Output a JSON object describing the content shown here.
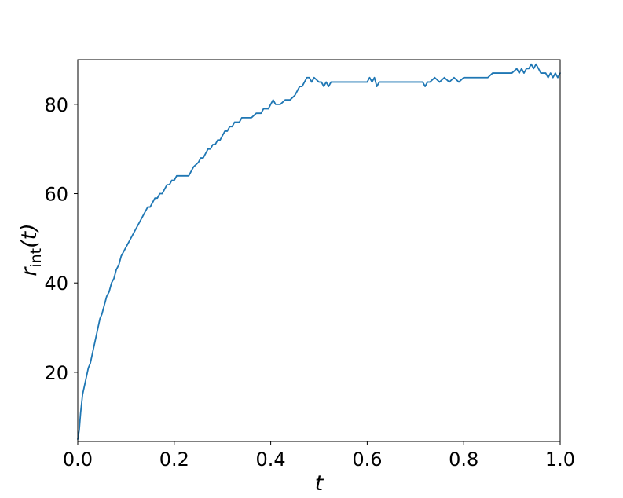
{
  "chart_data": {
    "type": "line",
    "title": "",
    "xlabel": "t",
    "ylabel": {
      "var": "r",
      "sub": "int",
      "arg": "(t)"
    },
    "xlim": [
      0.0,
      1.0
    ],
    "ylim": [
      4.5,
      90
    ],
    "grid": false,
    "legend": null,
    "x_ticks": [
      "0.0",
      "0.2",
      "0.4",
      "0.6",
      "0.8",
      "1.0"
    ],
    "y_ticks": [
      "20",
      "40",
      "60",
      "80"
    ],
    "colors": {
      "line": "#1f77b4",
      "axes": "#000000"
    },
    "series": [
      {
        "x": [
          0.0,
          0.003,
          0.006,
          0.01,
          0.014,
          0.018,
          0.022,
          0.026,
          0.03,
          0.034,
          0.038,
          0.042,
          0.046,
          0.05,
          0.055,
          0.06,
          0.065,
          0.07,
          0.075,
          0.08,
          0.085,
          0.09,
          0.095,
          0.1,
          0.105,
          0.11,
          0.115,
          0.12,
          0.125,
          0.13,
          0.135,
          0.14,
          0.145,
          0.15,
          0.155,
          0.16,
          0.165,
          0.17,
          0.175,
          0.18,
          0.185,
          0.19,
          0.195,
          0.2,
          0.205,
          0.21,
          0.215,
          0.22,
          0.23,
          0.24,
          0.25,
          0.255,
          0.26,
          0.265,
          0.27,
          0.275,
          0.28,
          0.285,
          0.29,
          0.295,
          0.3,
          0.305,
          0.31,
          0.315,
          0.32,
          0.325,
          0.33,
          0.335,
          0.34,
          0.345,
          0.35,
          0.36,
          0.37,
          0.375,
          0.38,
          0.385,
          0.39,
          0.395,
          0.4,
          0.405,
          0.41,
          0.415,
          0.42,
          0.43,
          0.44,
          0.45,
          0.455,
          0.46,
          0.465,
          0.47,
          0.475,
          0.48,
          0.485,
          0.49,
          0.5,
          0.505,
          0.51,
          0.515,
          0.52,
          0.525,
          0.53,
          0.54,
          0.55,
          0.56,
          0.57,
          0.58,
          0.59,
          0.6,
          0.605,
          0.61,
          0.615,
          0.62,
          0.625,
          0.63,
          0.64,
          0.65,
          0.66,
          0.67,
          0.68,
          0.69,
          0.7,
          0.71,
          0.715,
          0.72,
          0.725,
          0.73,
          0.74,
          0.75,
          0.76,
          0.77,
          0.78,
          0.79,
          0.8,
          0.81,
          0.82,
          0.83,
          0.84,
          0.85,
          0.86,
          0.87,
          0.88,
          0.89,
          0.9,
          0.91,
          0.915,
          0.92,
          0.925,
          0.93,
          0.935,
          0.94,
          0.945,
          0.95,
          0.955,
          0.96,
          0.965,
          0.97,
          0.975,
          0.98,
          0.985,
          0.99,
          0.995,
          1.0
        ],
        "y": [
          5,
          7,
          11,
          15,
          17,
          19,
          21,
          22,
          24,
          26,
          28,
          30,
          32,
          33,
          35,
          37,
          38,
          40,
          41,
          43,
          44,
          46,
          47,
          48,
          49,
          50,
          51,
          52,
          53,
          54,
          55,
          56,
          57,
          57,
          58,
          59,
          59,
          60,
          60,
          61,
          62,
          62,
          63,
          63,
          64,
          64,
          64,
          64,
          64,
          66,
          67,
          68,
          68,
          69,
          70,
          70,
          71,
          71,
          72,
          72,
          73,
          74,
          74,
          75,
          75,
          76,
          76,
          76,
          77,
          77,
          77,
          77,
          78,
          78,
          78,
          79,
          79,
          79,
          80,
          81,
          80,
          80,
          80,
          81,
          81,
          82,
          83,
          84,
          84,
          85,
          86,
          86,
          85,
          86,
          85,
          85,
          84,
          85,
          84,
          85,
          85,
          85,
          85,
          85,
          85,
          85,
          85,
          85,
          86,
          85,
          86,
          84,
          85,
          85,
          85,
          85,
          85,
          85,
          85,
          85,
          85,
          85,
          85,
          84,
          85,
          85,
          86,
          85,
          86,
          85,
          86,
          85,
          86,
          86,
          86,
          86,
          86,
          86,
          87,
          87,
          87,
          87,
          87,
          88,
          87,
          88,
          87,
          88,
          88,
          89,
          88,
          89,
          88,
          87,
          87,
          87,
          86,
          87,
          86,
          87,
          86,
          87
        ]
      }
    ]
  }
}
